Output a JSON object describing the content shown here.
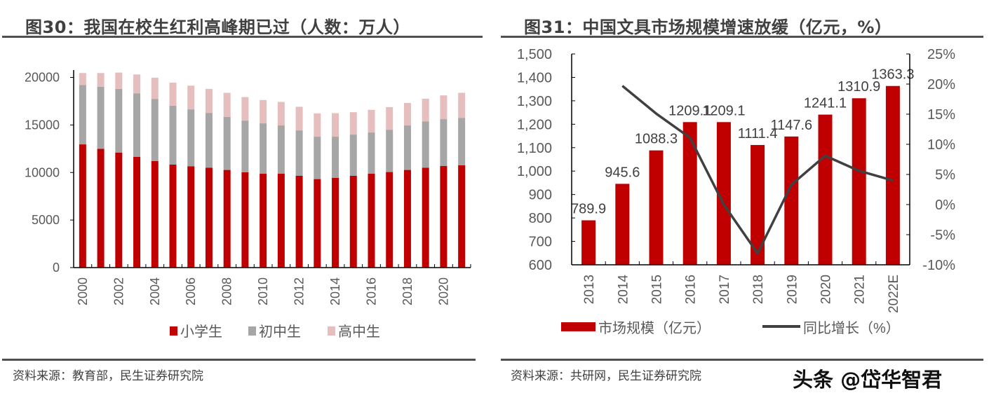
{
  "left": {
    "title": "图30：我国在校生红利高峰期已过（人数：万人）",
    "source": "资料来源：教育部，民生证券研究院"
  },
  "right": {
    "title": "图31：中国文具市场规模增速放缓（亿元，%）",
    "source": "资料来源：共研网，民生证券研究院"
  },
  "watermark": "头条 @岱华智君",
  "chart_data": [
    {
      "type": "bar",
      "stacked": true,
      "categories": [
        "2000",
        "2001",
        "2002",
        "2003",
        "2004",
        "2005",
        "2006",
        "2007",
        "2008",
        "2009",
        "2010",
        "2011",
        "2012",
        "2013",
        "2014",
        "2015",
        "2016",
        "2017",
        "2018",
        "2019",
        "2020",
        "2021"
      ],
      "x_tick_labels": [
        "2000",
        "2002",
        "2004",
        "2006",
        "2008",
        "2010",
        "2012",
        "2014",
        "2016",
        "2018",
        "2020"
      ],
      "series": [
        {
          "name": "小学生",
          "color": "#C00000",
          "values": [
            12960,
            12500,
            12100,
            11640,
            11200,
            10830,
            10660,
            10510,
            10270,
            10020,
            9870,
            9870,
            9650,
            9310,
            9430,
            9650,
            9870,
            10050,
            10270,
            10510,
            10680,
            10760
          ]
        },
        {
          "name": "初中生",
          "color": "#A6A6A6",
          "values": [
            6250,
            6510,
            6690,
            6690,
            6540,
            6200,
            5980,
            5760,
            5580,
            5440,
            5300,
            5080,
            4780,
            4460,
            4340,
            4340,
            4340,
            4450,
            4680,
            4850,
            4930,
            4990
          ]
        },
        {
          "name": "高中生",
          "color": "#E6BEBE",
          "values": [
            1250,
            1450,
            1720,
            1980,
            2230,
            2420,
            2490,
            2520,
            2530,
            2470,
            2450,
            2470,
            2480,
            2450,
            2470,
            2350,
            2380,
            2380,
            2370,
            2400,
            2500,
            2630
          ]
        }
      ],
      "ylim": [
        0,
        20000
      ],
      "y_ticks": [
        "0",
        "5000",
        "10000",
        "15000",
        "20000"
      ],
      "legend_position": "bottom",
      "grid": false
    },
    {
      "type": "bar+line",
      "categories": [
        "2013",
        "2014",
        "2015",
        "2016",
        "2017",
        "2018",
        "2019",
        "2020",
        "2021",
        "2022E"
      ],
      "bar_series": {
        "name": "市场规模（亿元）",
        "color": "#C00000",
        "values": [
          789.9,
          945.6,
          1088.3,
          1209.1,
          1209.1,
          1111.4,
          1147.6,
          1241.1,
          1310.9,
          1363.3
        ],
        "labels": [
          "789.9",
          "945.6",
          "1088.3",
          "1209.1",
          "1209.1",
          "1111.4",
          "1147.6",
          "1241.1",
          "1310.9",
          "1363.3"
        ]
      },
      "line_series": {
        "name": "同比增长（%）",
        "color": "#404040",
        "values": [
          null,
          19.7,
          15.1,
          11.1,
          0.0,
          -8.1,
          3.3,
          8.1,
          5.6,
          4.0
        ]
      },
      "ylim_left": [
        600,
        1500
      ],
      "y_ticks_left": [
        "600",
        "700",
        "800",
        "900",
        "1,000",
        "1,100",
        "1,200",
        "1,300",
        "1,400",
        "1,500"
      ],
      "ylim_right": [
        -10,
        25
      ],
      "y_ticks_right": [
        "-10%",
        "-5%",
        "0%",
        "5%",
        "10%",
        "15%",
        "20%",
        "25%"
      ],
      "legend_position": "bottom",
      "grid": false
    }
  ]
}
